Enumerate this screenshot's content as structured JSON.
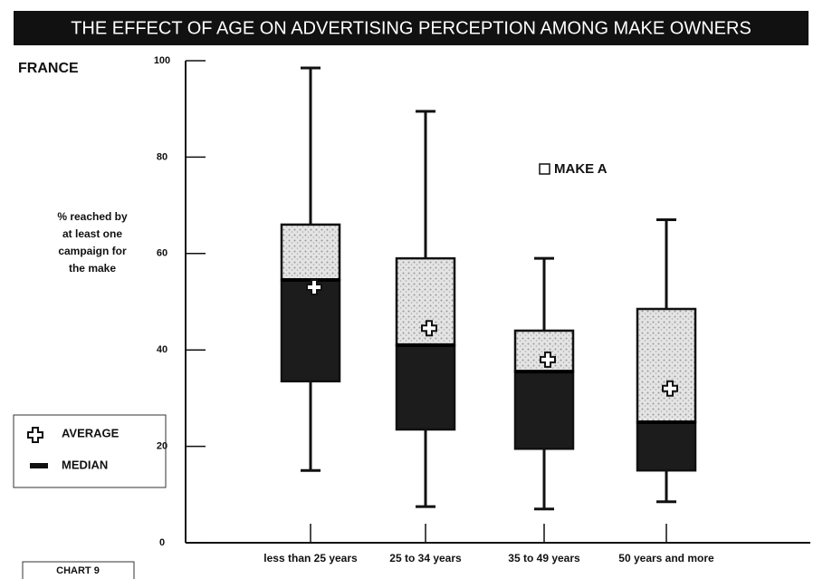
{
  "chart_data": {
    "type": "box",
    "title": "THE EFFECT OF AGE ON ADVERTISING PERCEPTION AMONG MAKE OWNERS",
    "region": "FRANCE",
    "ylabel": [
      "% reached by",
      "at least one",
      "campaign for",
      "the make"
    ],
    "footer": "CHART 9",
    "legend": {
      "average": "AVERAGE",
      "median": "MEDIAN"
    },
    "categories": [
      "less than 25 years",
      "25 to 34 years",
      "35 to 49 years",
      "50 years and more"
    ],
    "series": [
      {
        "name": "MAKE A",
        "upper_color": "#d4d4d4",
        "lower_color": "#1c1c1c",
        "max": [
          98.5,
          89.5,
          59,
          67
        ],
        "q3": [
          66,
          59,
          44,
          48.5
        ],
        "median": [
          54.5,
          41,
          35.5,
          25
        ],
        "q1": [
          33.5,
          23.5,
          19.5,
          15
        ],
        "min": [
          15,
          7.5,
          7,
          8.5
        ],
        "mean": [
          53,
          44.5,
          38,
          32
        ]
      }
    ],
    "ylim": [
      0,
      100
    ],
    "yticks": [
      0,
      20,
      40,
      60,
      80,
      100
    ]
  }
}
